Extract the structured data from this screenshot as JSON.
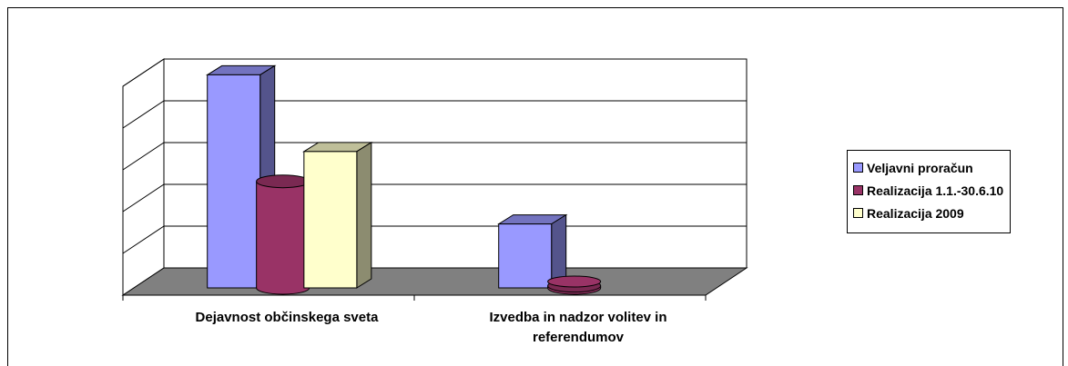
{
  "chart_data": {
    "type": "bar",
    "categories": [
      "Dejavnost občinskega sveta",
      "Izvedba in nadzor volitev in referendumov"
    ],
    "series": [
      {
        "name": "Veljavni proračun",
        "values": [
          5,
          1.5
        ],
        "color": "#9999FF"
      },
      {
        "name": "Realizacija 1.1.-30.6.10",
        "values": [
          2.5,
          0.05
        ],
        "color": "#993366"
      },
      {
        "name": "Realizacija 2009",
        "values": [
          3.2,
          0
        ],
        "color": "#FFFFCC"
      }
    ],
    "ylim": [
      0,
      5
    ],
    "grid": true,
    "legend": "right"
  }
}
